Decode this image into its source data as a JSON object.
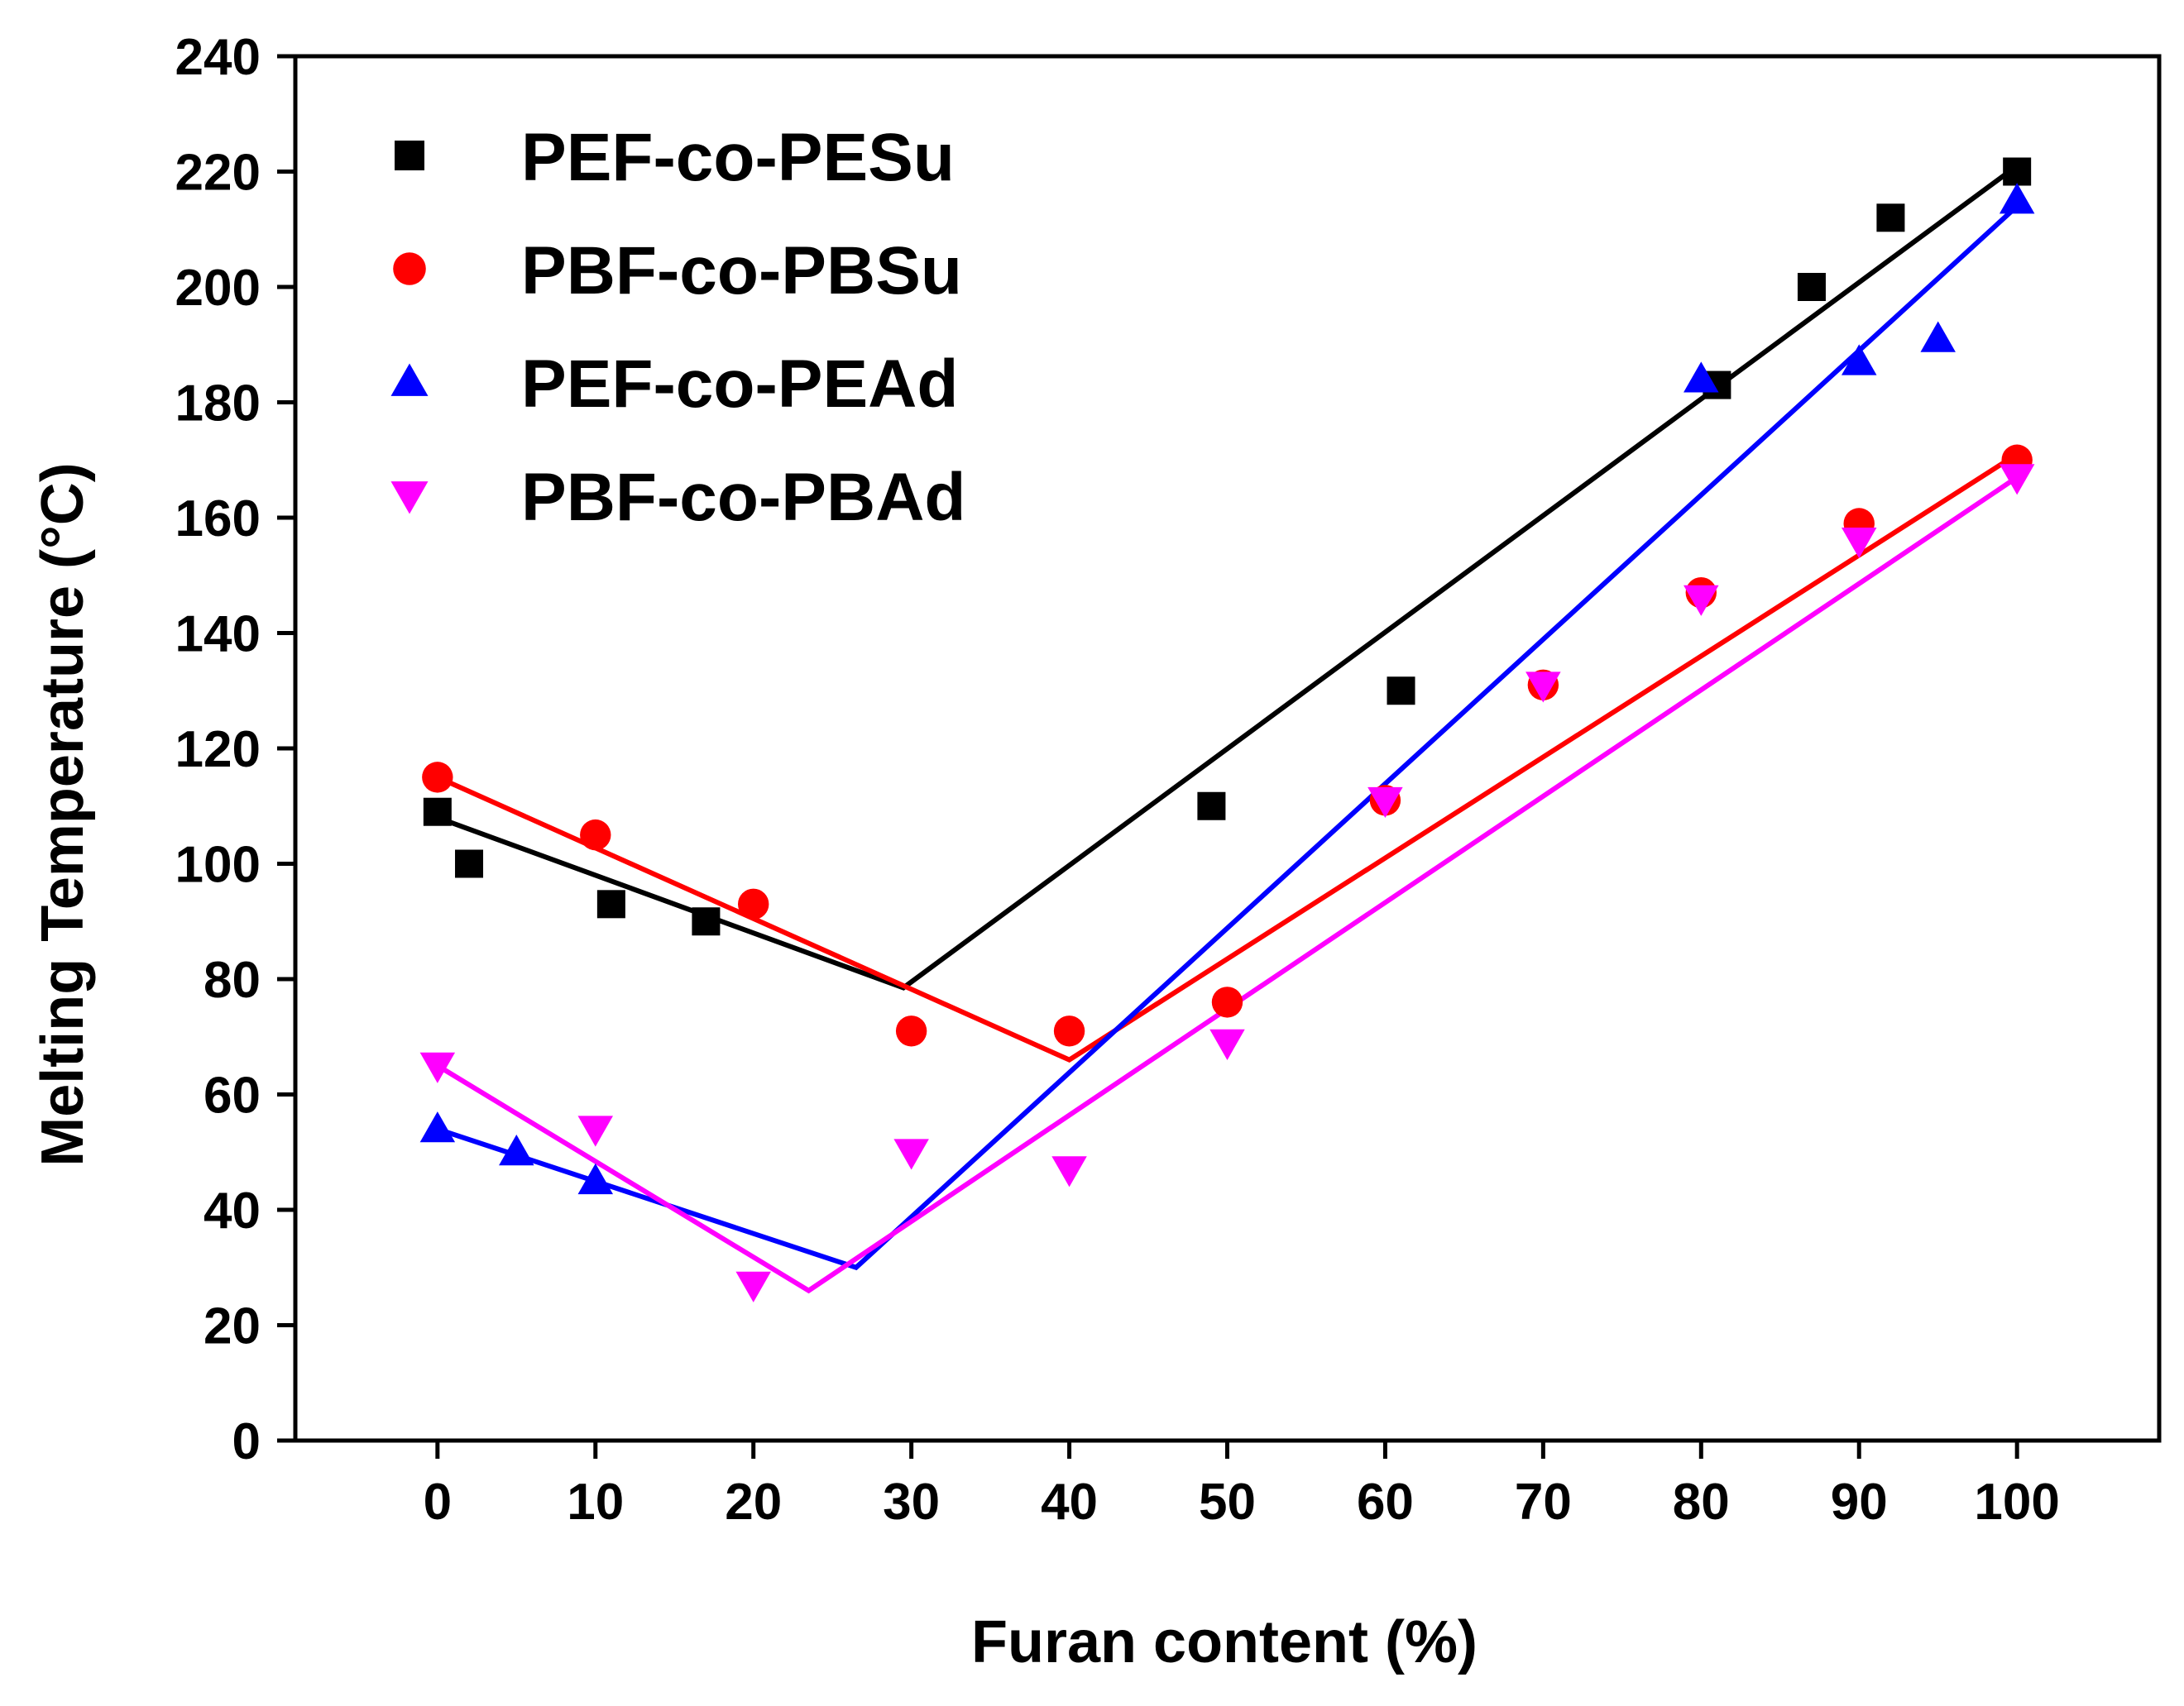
{
  "chart_data": {
    "type": "scatter",
    "xlabel": "Furan content (%)",
    "ylabel": "Melting Temperature (°C)",
    "xlim": [
      -9,
      109
    ],
    "ylim": [
      0,
      240
    ],
    "xticks": [
      0,
      10,
      20,
      30,
      40,
      50,
      60,
      70,
      80,
      90,
      100
    ],
    "yticks": [
      0,
      20,
      40,
      60,
      80,
      100,
      120,
      140,
      160,
      180,
      200,
      220,
      240
    ],
    "legend_position": "top-left",
    "series": [
      {
        "name": "PEF-co-PESu",
        "color": "#000000",
        "marker": "square",
        "points": [
          [
            0,
            109
          ],
          [
            2,
            100
          ],
          [
            11,
            93
          ],
          [
            17,
            90
          ],
          [
            49,
            110
          ],
          [
            61,
            130
          ],
          [
            81,
            183
          ],
          [
            87,
            200
          ],
          [
            92,
            212
          ],
          [
            100,
            220
          ]
        ],
        "fit": [
          [
            0,
            108
          ],
          [
            29.5,
            78.5
          ],
          [
            100,
            221
          ]
        ]
      },
      {
        "name": "PBF-co-PBSu",
        "color": "#ff0000",
        "marker": "circle",
        "points": [
          [
            0,
            115
          ],
          [
            10,
            105
          ],
          [
            20,
            93
          ],
          [
            30,
            71
          ],
          [
            40,
            71
          ],
          [
            50,
            76
          ],
          [
            60,
            111
          ],
          [
            70,
            131
          ],
          [
            80,
            147
          ],
          [
            90,
            159
          ],
          [
            100,
            170
          ]
        ],
        "fit": [
          [
            0,
            115
          ],
          [
            40,
            66
          ],
          [
            100,
            171
          ]
        ]
      },
      {
        "name": "PEF-co-PEAd",
        "color": "#0000ff",
        "marker": "triangle-up",
        "points": [
          [
            0,
            54
          ],
          [
            5,
            50
          ],
          [
            10,
            45
          ],
          [
            80,
            184
          ],
          [
            90,
            187
          ],
          [
            95,
            191
          ],
          [
            100,
            215
          ]
        ],
        "fit": [
          [
            0,
            54
          ],
          [
            26.5,
            30
          ],
          [
            100,
            214
          ]
        ]
      },
      {
        "name": "PBF-co-PBAd",
        "color": "#ff00ff",
        "marker": "triangle-down",
        "points": [
          [
            0,
            65
          ],
          [
            10,
            54
          ],
          [
            20,
            27
          ],
          [
            30,
            50
          ],
          [
            40,
            47
          ],
          [
            50,
            69
          ],
          [
            60,
            111
          ],
          [
            70,
            131
          ],
          [
            80,
            146
          ],
          [
            90,
            156
          ],
          [
            100,
            167
          ]
        ],
        "fit": [
          [
            0,
            65
          ],
          [
            23.5,
            26
          ],
          [
            100,
            167
          ]
        ]
      }
    ]
  }
}
